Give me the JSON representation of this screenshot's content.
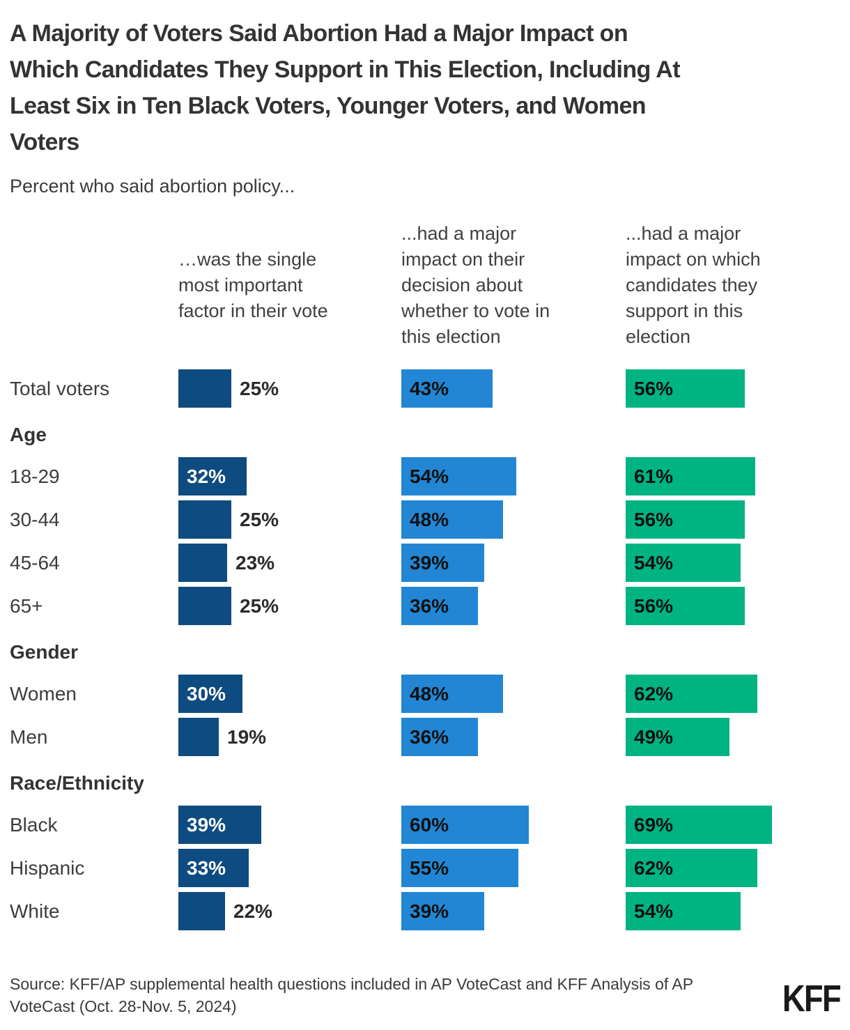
{
  "title": "A Majority of Voters Said Abortion Had a Major Impact on\nWhich Candidates They Support in This Election, Including At\nLeast Six in Ten Black Voters, Younger Voters, and Women\nVoters",
  "subtitle": "Percent who said abortion policy...",
  "columns": [
    {
      "label": "…was the single\nmost important\nfactor in their vote",
      "color": "#0E4B80",
      "inside_label_color": "#ffffff"
    },
    {
      "label": "...had a major\nimpact on their\ndecision about\nwhether to vote in\nthis election",
      "color": "#2286D4",
      "inside_label_color": "#111111"
    },
    {
      "label": "...had a major\nimpact on which\ncandidates they\nsupport in this\nelection",
      "color": "#00B383",
      "inside_label_color": "#111111"
    }
  ],
  "rows": [
    {
      "type": "data",
      "label": "Total voters",
      "values": [
        25,
        43,
        56
      ]
    },
    {
      "type": "section",
      "label": "Age"
    },
    {
      "type": "data",
      "label": "18-29",
      "values": [
        32,
        54,
        61
      ]
    },
    {
      "type": "data",
      "label": "30-44",
      "values": [
        25,
        48,
        56
      ]
    },
    {
      "type": "data",
      "label": "45-64",
      "values": [
        23,
        39,
        54
      ]
    },
    {
      "type": "data",
      "label": "65+",
      "values": [
        25,
        36,
        56
      ]
    },
    {
      "type": "section",
      "label": "Gender"
    },
    {
      "type": "data",
      "label": "Women",
      "values": [
        30,
        48,
        62
      ]
    },
    {
      "type": "data",
      "label": "Men",
      "values": [
        19,
        36,
        49
      ]
    },
    {
      "type": "section",
      "label": "Race/Ethnicity"
    },
    {
      "type": "data",
      "label": "Black",
      "values": [
        39,
        60,
        69
      ]
    },
    {
      "type": "data",
      "label": "Hispanic",
      "values": [
        33,
        55,
        62
      ]
    },
    {
      "type": "data",
      "label": "White",
      "values": [
        22,
        39,
        54
      ]
    }
  ],
  "source": "Source: KFF/AP supplemental health questions included in AP VoteCast and KFF Analysis of AP VoteCast (Oct. 28-Nov. 5, 2024)",
  "logo": "KFF",
  "chart_data": {
    "type": "bar",
    "orientation": "horizontal",
    "unit": "percent",
    "xlim": [
      0,
      100
    ],
    "grid": false,
    "legend_position": "column-headers-top",
    "title": "A Majority of Voters Said Abortion Had a Major Impact on Which Candidates They Support in This Election, Including At Least Six in Ten Black Voters, Younger Voters, and Women Voters",
    "subtitle": "Percent who said abortion policy...",
    "categories": [
      "Total voters",
      "18-29",
      "30-44",
      "45-64",
      "65+",
      "Women",
      "Men",
      "Black",
      "Hispanic",
      "White"
    ],
    "row_groups": [
      {
        "group": null,
        "rows": [
          "Total voters"
        ]
      },
      {
        "group": "Age",
        "rows": [
          "18-29",
          "30-44",
          "45-64",
          "65+"
        ]
      },
      {
        "group": "Gender",
        "rows": [
          "Women",
          "Men"
        ]
      },
      {
        "group": "Race/Ethnicity",
        "rows": [
          "Black",
          "Hispanic",
          "White"
        ]
      }
    ],
    "series": [
      {
        "name": "…was the single most important factor in their vote",
        "color": "#0E4B80",
        "values": [
          25,
          32,
          25,
          23,
          25,
          30,
          19,
          39,
          33,
          22
        ]
      },
      {
        "name": "...had a major impact on their decision about whether to vote in this election",
        "color": "#2286D4",
        "values": [
          43,
          54,
          48,
          39,
          36,
          48,
          36,
          60,
          55,
          39
        ]
      },
      {
        "name": "...had a major impact on which candidates they support in this election",
        "color": "#00B383",
        "values": [
          56,
          61,
          56,
          54,
          56,
          62,
          49,
          69,
          62,
          54
        ]
      }
    ],
    "source": "Source: KFF/AP supplemental health questions included in AP VoteCast and KFF Analysis of AP VoteCast (Oct. 28-Nov. 5, 2024)"
  }
}
